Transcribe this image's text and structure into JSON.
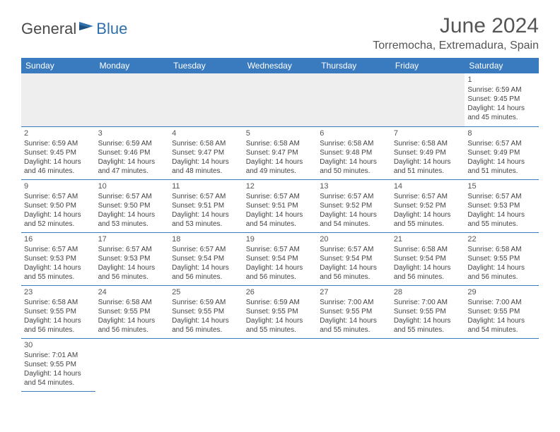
{
  "logo": {
    "part1": "General",
    "part2": "Blue"
  },
  "title": "June 2024",
  "location": "Torremocha, Extremadura, Spain",
  "colors": {
    "header_bg": "#3a7bbf",
    "header_text": "#ffffff",
    "border": "#3a7bbf",
    "body_text": "#444444",
    "title_text": "#555555",
    "logo_gray": "#4a4a4a",
    "logo_blue": "#2f6fab",
    "blank_bg": "#eeeeee"
  },
  "weekdays": [
    "Sunday",
    "Monday",
    "Tuesday",
    "Wednesday",
    "Thursday",
    "Friday",
    "Saturday"
  ],
  "weeks": [
    [
      null,
      null,
      null,
      null,
      null,
      null,
      {
        "n": "1",
        "sr": "6:59 AM",
        "ss": "9:45 PM",
        "dl": "14 hours and 45 minutes."
      }
    ],
    [
      {
        "n": "2",
        "sr": "6:59 AM",
        "ss": "9:45 PM",
        "dl": "14 hours and 46 minutes."
      },
      {
        "n": "3",
        "sr": "6:59 AM",
        "ss": "9:46 PM",
        "dl": "14 hours and 47 minutes."
      },
      {
        "n": "4",
        "sr": "6:58 AM",
        "ss": "9:47 PM",
        "dl": "14 hours and 48 minutes."
      },
      {
        "n": "5",
        "sr": "6:58 AM",
        "ss": "9:47 PM",
        "dl": "14 hours and 49 minutes."
      },
      {
        "n": "6",
        "sr": "6:58 AM",
        "ss": "9:48 PM",
        "dl": "14 hours and 50 minutes."
      },
      {
        "n": "7",
        "sr": "6:58 AM",
        "ss": "9:49 PM",
        "dl": "14 hours and 51 minutes."
      },
      {
        "n": "8",
        "sr": "6:57 AM",
        "ss": "9:49 PM",
        "dl": "14 hours and 51 minutes."
      }
    ],
    [
      {
        "n": "9",
        "sr": "6:57 AM",
        "ss": "9:50 PM",
        "dl": "14 hours and 52 minutes."
      },
      {
        "n": "10",
        "sr": "6:57 AM",
        "ss": "9:50 PM",
        "dl": "14 hours and 53 minutes."
      },
      {
        "n": "11",
        "sr": "6:57 AM",
        "ss": "9:51 PM",
        "dl": "14 hours and 53 minutes."
      },
      {
        "n": "12",
        "sr": "6:57 AM",
        "ss": "9:51 PM",
        "dl": "14 hours and 54 minutes."
      },
      {
        "n": "13",
        "sr": "6:57 AM",
        "ss": "9:52 PM",
        "dl": "14 hours and 54 minutes."
      },
      {
        "n": "14",
        "sr": "6:57 AM",
        "ss": "9:52 PM",
        "dl": "14 hours and 55 minutes."
      },
      {
        "n": "15",
        "sr": "6:57 AM",
        "ss": "9:53 PM",
        "dl": "14 hours and 55 minutes."
      }
    ],
    [
      {
        "n": "16",
        "sr": "6:57 AM",
        "ss": "9:53 PM",
        "dl": "14 hours and 55 minutes."
      },
      {
        "n": "17",
        "sr": "6:57 AM",
        "ss": "9:53 PM",
        "dl": "14 hours and 56 minutes."
      },
      {
        "n": "18",
        "sr": "6:57 AM",
        "ss": "9:54 PM",
        "dl": "14 hours and 56 minutes."
      },
      {
        "n": "19",
        "sr": "6:57 AM",
        "ss": "9:54 PM",
        "dl": "14 hours and 56 minutes."
      },
      {
        "n": "20",
        "sr": "6:57 AM",
        "ss": "9:54 PM",
        "dl": "14 hours and 56 minutes."
      },
      {
        "n": "21",
        "sr": "6:58 AM",
        "ss": "9:54 PM",
        "dl": "14 hours and 56 minutes."
      },
      {
        "n": "22",
        "sr": "6:58 AM",
        "ss": "9:55 PM",
        "dl": "14 hours and 56 minutes."
      }
    ],
    [
      {
        "n": "23",
        "sr": "6:58 AM",
        "ss": "9:55 PM",
        "dl": "14 hours and 56 minutes."
      },
      {
        "n": "24",
        "sr": "6:58 AM",
        "ss": "9:55 PM",
        "dl": "14 hours and 56 minutes."
      },
      {
        "n": "25",
        "sr": "6:59 AM",
        "ss": "9:55 PM",
        "dl": "14 hours and 56 minutes."
      },
      {
        "n": "26",
        "sr": "6:59 AM",
        "ss": "9:55 PM",
        "dl": "14 hours and 55 minutes."
      },
      {
        "n": "27",
        "sr": "7:00 AM",
        "ss": "9:55 PM",
        "dl": "14 hours and 55 minutes."
      },
      {
        "n": "28",
        "sr": "7:00 AM",
        "ss": "9:55 PM",
        "dl": "14 hours and 55 minutes."
      },
      {
        "n": "29",
        "sr": "7:00 AM",
        "ss": "9:55 PM",
        "dl": "14 hours and 54 minutes."
      }
    ],
    [
      {
        "n": "30",
        "sr": "7:01 AM",
        "ss": "9:55 PM",
        "dl": "14 hours and 54 minutes."
      },
      null,
      null,
      null,
      null,
      null,
      null
    ]
  ],
  "labels": {
    "sunrise": "Sunrise:",
    "sunset": "Sunset:",
    "daylight": "Daylight:"
  }
}
